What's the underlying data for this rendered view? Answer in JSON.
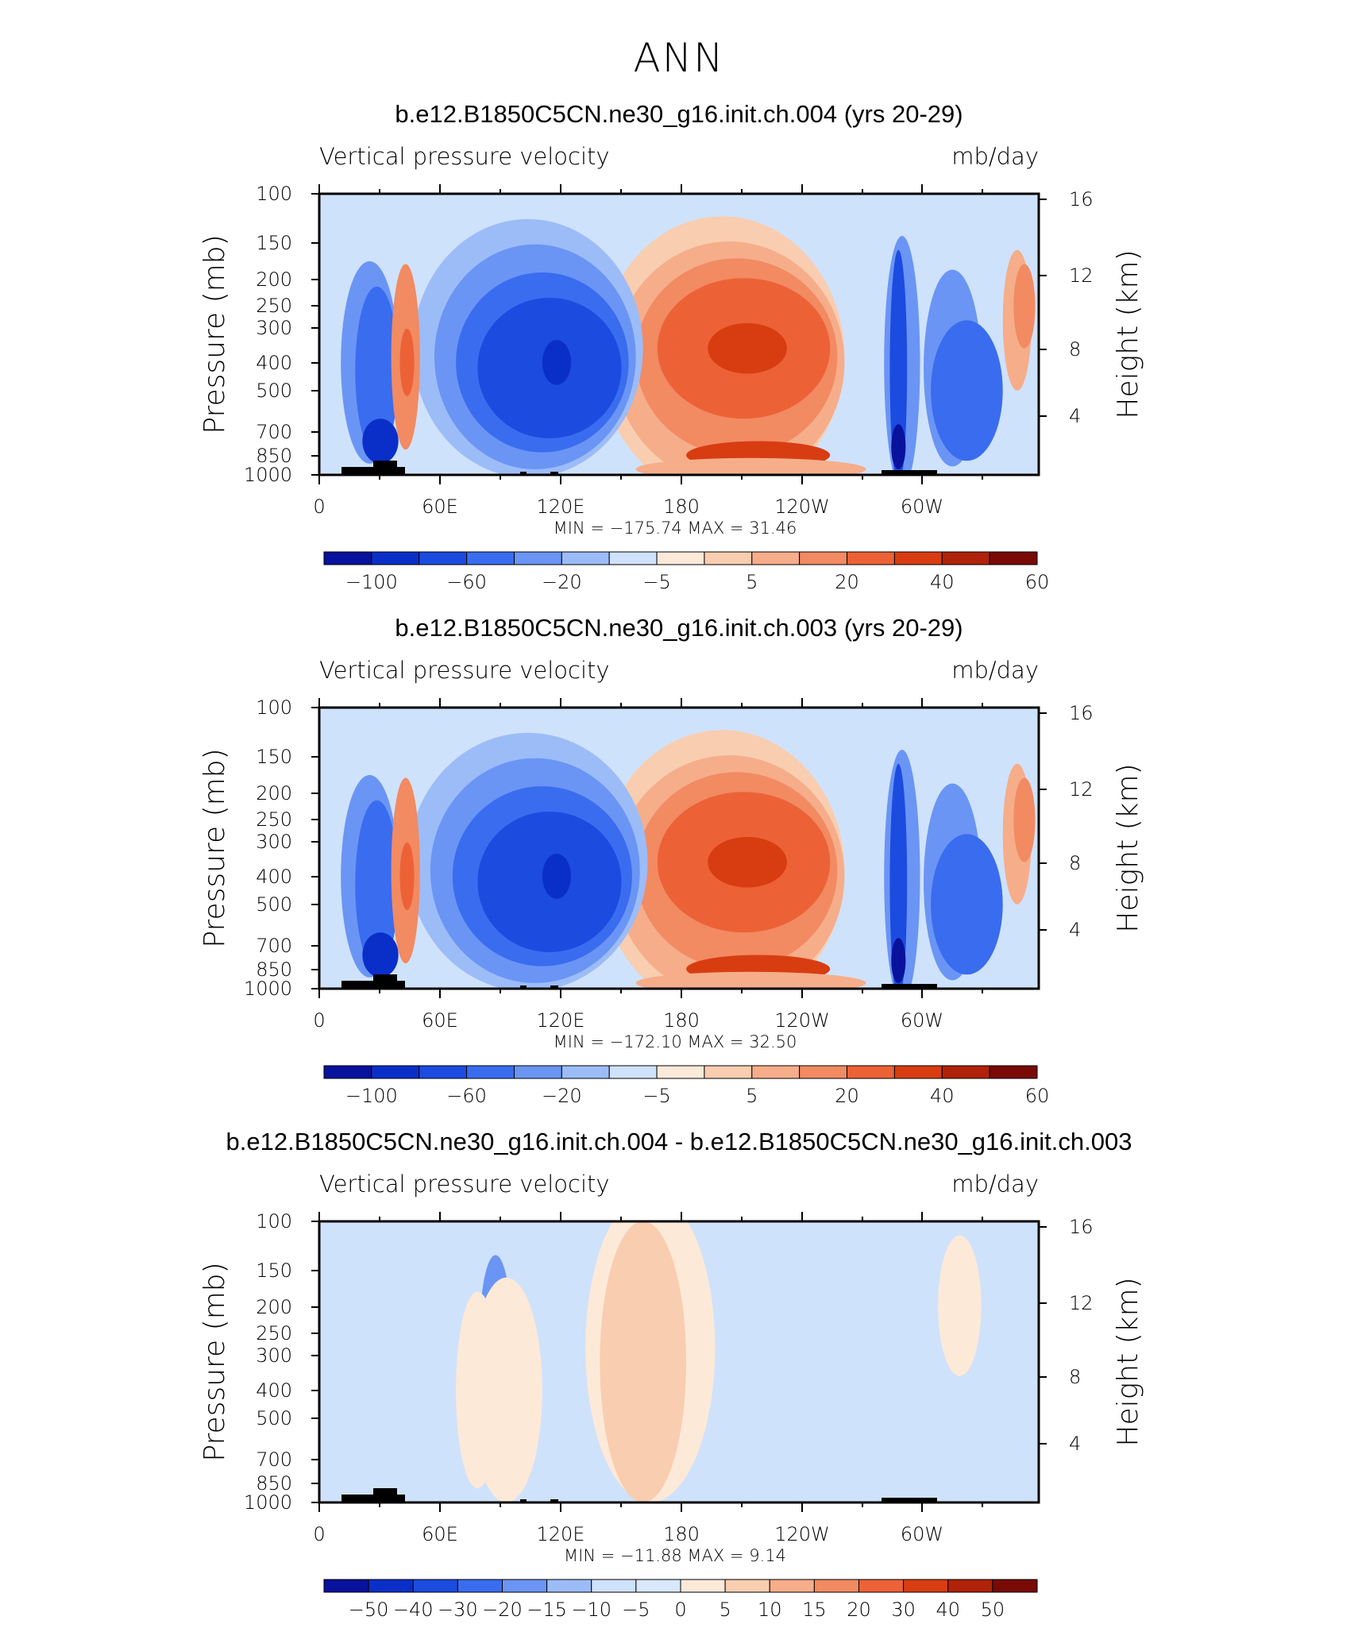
{
  "figure_title": "ANN",
  "chart_data": [
    {
      "type": "heatmap",
      "title": "b.e12.B1850C5CN.ne30_g16.init.ch.004 (yrs 20-29)",
      "variable": "Vertical pressure velocity",
      "units": "mb/day",
      "ylabel": "Pressure (mb)",
      "y2label": "Height (km)",
      "y_ticks": [
        "100",
        "150",
        "200",
        "250",
        "300",
        "400",
        "500",
        "700",
        "850",
        "1000"
      ],
      "y2_ticks": [
        "16",
        "12",
        "8",
        "4"
      ],
      "x_ticks": [
        "0",
        "60E",
        "120E",
        "180",
        "120W",
        "60W"
      ],
      "stats": {
        "min_label": "MIN = ",
        "min": "−175.74",
        "max_label": "MAX = ",
        "max": "31.46"
      },
      "colorbar": {
        "levels": [
          "−100",
          "−60",
          "−20",
          "−5",
          "5",
          "20",
          "40",
          "60"
        ],
        "colors": [
          "#08129c",
          "#0a2fc9",
          "#1c4be0",
          "#3a6cf0",
          "#6a95f4",
          "#9cbcf8",
          "#cfe2fb",
          "#fde9d8",
          "#f9cdb0",
          "#f6ad8a",
          "#f28a62",
          "#ec6236",
          "#d83d12",
          "#b0220a",
          "#7a0a06"
        ]
      },
      "max_contour": "40"
    },
    {
      "type": "heatmap",
      "title": "b.e12.B1850C5CN.ne30_g16.init.ch.003 (yrs 20-29)",
      "variable": "Vertical pressure velocity",
      "units": "mb/day",
      "ylabel": "Pressure (mb)",
      "y2label": "Height (km)",
      "y_ticks": [
        "100",
        "150",
        "200",
        "250",
        "300",
        "400",
        "500",
        "700",
        "850",
        "1000"
      ],
      "y2_ticks": [
        "16",
        "12",
        "8",
        "4"
      ],
      "x_ticks": [
        "0",
        "60E",
        "120E",
        "180",
        "120W",
        "60W"
      ],
      "stats": {
        "min_label": "MIN = ",
        "min": "−172.10",
        "max_label": "MAX = ",
        "max": "32.50"
      },
      "colorbar": {
        "levels": [
          "−100",
          "−60",
          "−20",
          "−5",
          "5",
          "20",
          "40",
          "60"
        ],
        "colors": [
          "#08129c",
          "#0a2fc9",
          "#1c4be0",
          "#3a6cf0",
          "#6a95f4",
          "#9cbcf8",
          "#cfe2fb",
          "#fde9d8",
          "#f9cdb0",
          "#f6ad8a",
          "#f28a62",
          "#ec6236",
          "#d83d12",
          "#b0220a",
          "#7a0a06"
        ]
      },
      "max_contour": "40"
    },
    {
      "type": "heatmap",
      "title": "b.e12.B1850C5CN.ne30_g16.init.ch.004 - b.e12.B1850C5CN.ne30_g16.init.ch.003",
      "variable": "Vertical pressure velocity",
      "units": "mb/day",
      "ylabel": "Pressure (mb)",
      "y2label": "Height (km)",
      "y_ticks": [
        "100",
        "150",
        "200",
        "250",
        "300",
        "400",
        "500",
        "700",
        "850",
        "1000"
      ],
      "y2_ticks": [
        "16",
        "12",
        "8",
        "4"
      ],
      "x_ticks": [
        "0",
        "60E",
        "120E",
        "180",
        "120W",
        "60W"
      ],
      "stats": {
        "min_label": "MIN = ",
        "min": "−11.88",
        "max_label": "MAX = ",
        "max": "9.14"
      },
      "colorbar": {
        "levels": [
          "−50",
          "−40",
          "−30",
          "−20",
          "−15",
          "−10",
          "−5",
          "0",
          "5",
          "10",
          "15",
          "20",
          "30",
          "40",
          "50"
        ],
        "colors": [
          "#08129c",
          "#0a2fc9",
          "#1c4be0",
          "#3a6cf0",
          "#6a95f4",
          "#9cbcf8",
          "#cfe2fb",
          "#d9e8fb",
          "#fde9d8",
          "#f9cdb0",
          "#f6ad8a",
          "#f28a62",
          "#ec6236",
          "#d83d12",
          "#b0220a",
          "#7a0a06"
        ]
      },
      "max_contour": "diff"
    }
  ]
}
